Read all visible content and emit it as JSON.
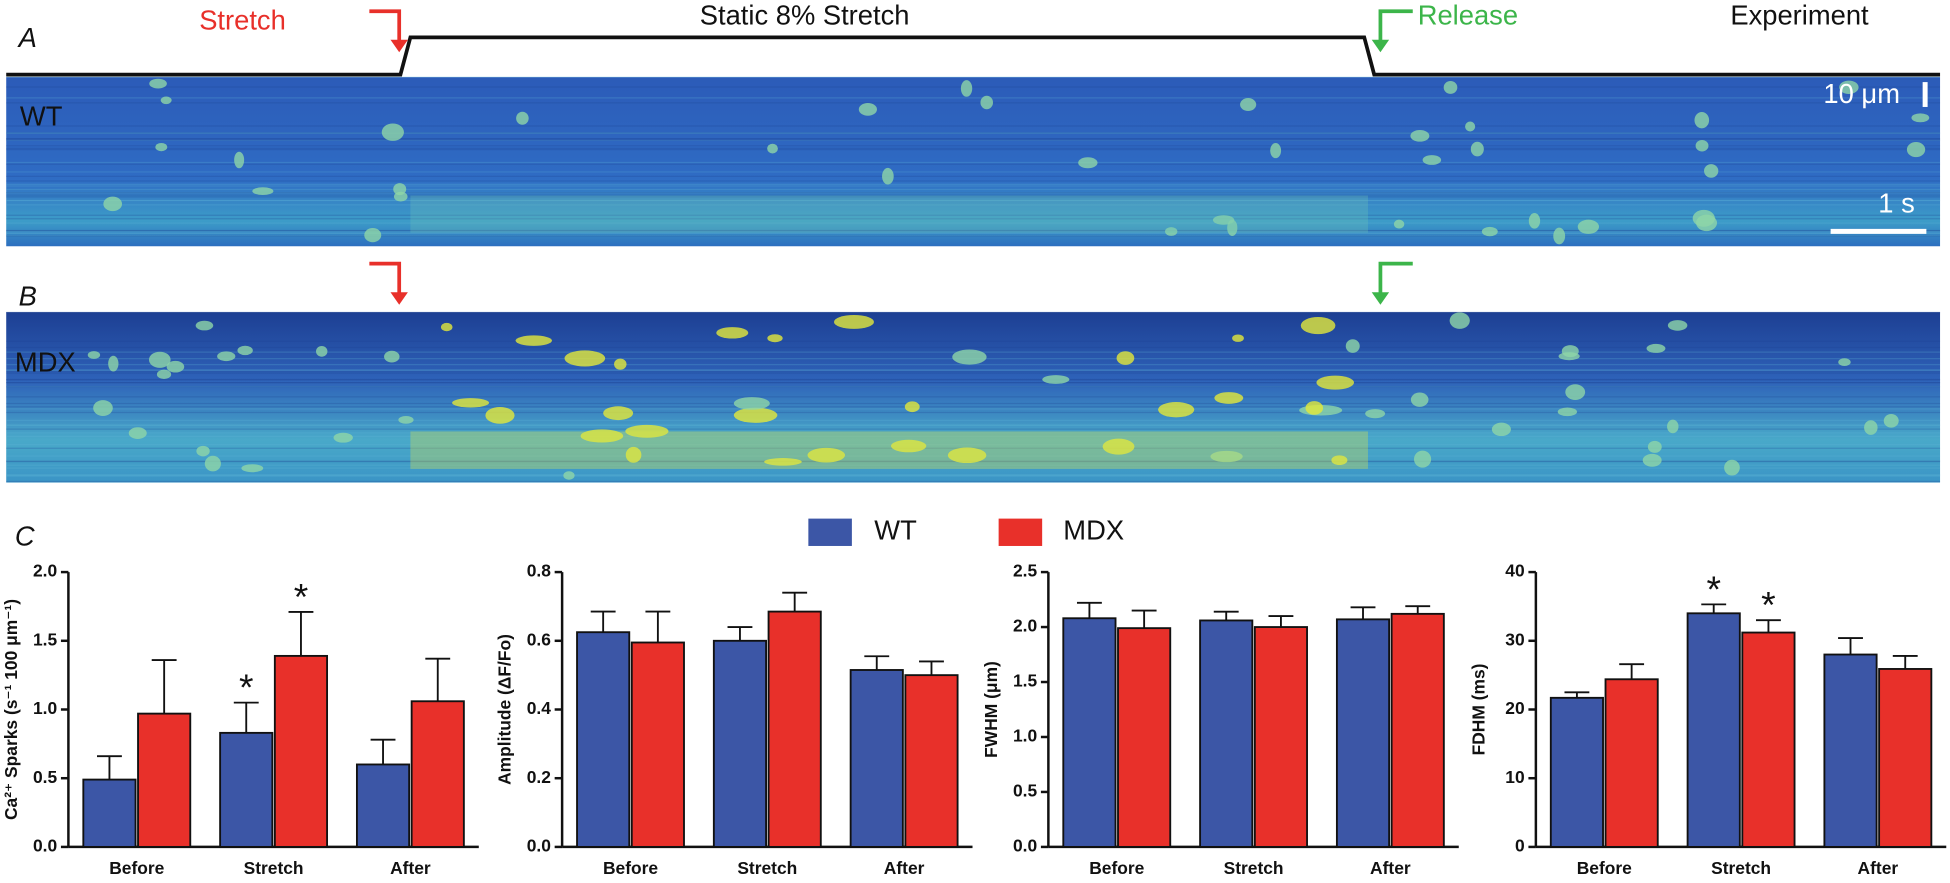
{
  "panel_labels": [
    "A",
    "B",
    "C"
  ],
  "experiment": {
    "stretch_label": "Stretch",
    "static_label": "Static 8% Stretch",
    "release_label": "Release",
    "experiment_label": "Experiment",
    "wt_label": "WT",
    "mdx_label": "MDX",
    "scale_y": "10 μm",
    "scale_x": "1 s"
  },
  "chart_data": [
    {
      "type": "bar",
      "ylabel": "Ca²⁺ Sparks (s⁻¹ 100 μm⁻¹)",
      "categories": [
        "Before",
        "Stretch",
        "After"
      ],
      "series": [
        {
          "name": "WT",
          "color": "#3c56a6",
          "values": [
            0.49,
            0.83,
            0.6
          ],
          "errors": [
            0.17,
            0.22,
            0.18
          ],
          "significance": [
            null,
            "*",
            null
          ]
        },
        {
          "name": "MDX",
          "color": "#e8302a",
          "values": [
            0.97,
            1.39,
            1.06
          ],
          "errors": [
            0.39,
            0.32,
            0.31
          ],
          "significance": [
            null,
            "*",
            null
          ]
        }
      ],
      "ylim": [
        0,
        2.0
      ],
      "yticks": [
        {
          "value": 0,
          "label": "0.0"
        },
        0.5,
        {
          "value": 1.0,
          "label": "1.0"
        },
        1.5,
        {
          "value": 2.0,
          "label": "2.0"
        }
      ]
    },
    {
      "type": "bar",
      "ylabel": "Amplitude (ΔF/Fo)",
      "categories": [
        "Before",
        "Stretch",
        "After"
      ],
      "series": [
        {
          "name": "WT",
          "color": "#3c56a6",
          "values": [
            0.625,
            0.6,
            0.515
          ],
          "errors": [
            0.06,
            0.04,
            0.04
          ]
        },
        {
          "name": "MDX",
          "color": "#e8302a",
          "values": [
            0.595,
            0.685,
            0.5
          ],
          "errors": [
            0.09,
            0.055,
            0.04
          ]
        }
      ],
      "ylim": [
        0,
        0.8
      ],
      "yticks": [
        {
          "value": 0,
          "label": "0.0"
        },
        0.2,
        0.4,
        0.6,
        0.8
      ]
    },
    {
      "type": "bar",
      "ylabel": "FWHM (μm)",
      "categories": [
        "Before",
        "Stretch",
        "After"
      ],
      "series": [
        {
          "name": "WT",
          "color": "#3c56a6",
          "values": [
            2.08,
            2.06,
            2.07
          ],
          "errors": [
            0.14,
            0.08,
            0.11
          ]
        },
        {
          "name": "MDX",
          "color": "#e8302a",
          "values": [
            1.99,
            2.0,
            2.12
          ],
          "errors": [
            0.16,
            0.1,
            0.07
          ]
        }
      ],
      "ylim": [
        0,
        2.5
      ],
      "yticks": [
        {
          "value": 0,
          "label": "0.0"
        },
        0.5,
        {
          "value": 1.0,
          "label": "1.0"
        },
        1.5,
        {
          "value": 2.0,
          "label": "2.0"
        },
        2.5
      ]
    },
    {
      "type": "bar",
      "ylabel": "FDHM (ms)",
      "categories": [
        "Before",
        "Stretch",
        "After"
      ],
      "series": [
        {
          "name": "WT",
          "color": "#3c56a6",
          "values": [
            21.7,
            34.0,
            28.0
          ],
          "errors": [
            0.8,
            1.3,
            2.4
          ],
          "significance": [
            null,
            "*",
            null
          ]
        },
        {
          "name": "MDX",
          "color": "#e8302a",
          "values": [
            24.4,
            31.2,
            25.9
          ],
          "errors": [
            2.2,
            1.8,
            1.9
          ],
          "significance": [
            null,
            "*",
            null
          ]
        }
      ],
      "ylim": [
        0,
        40
      ],
      "yticks": [
        0,
        10,
        20,
        30,
        40
      ]
    }
  ]
}
